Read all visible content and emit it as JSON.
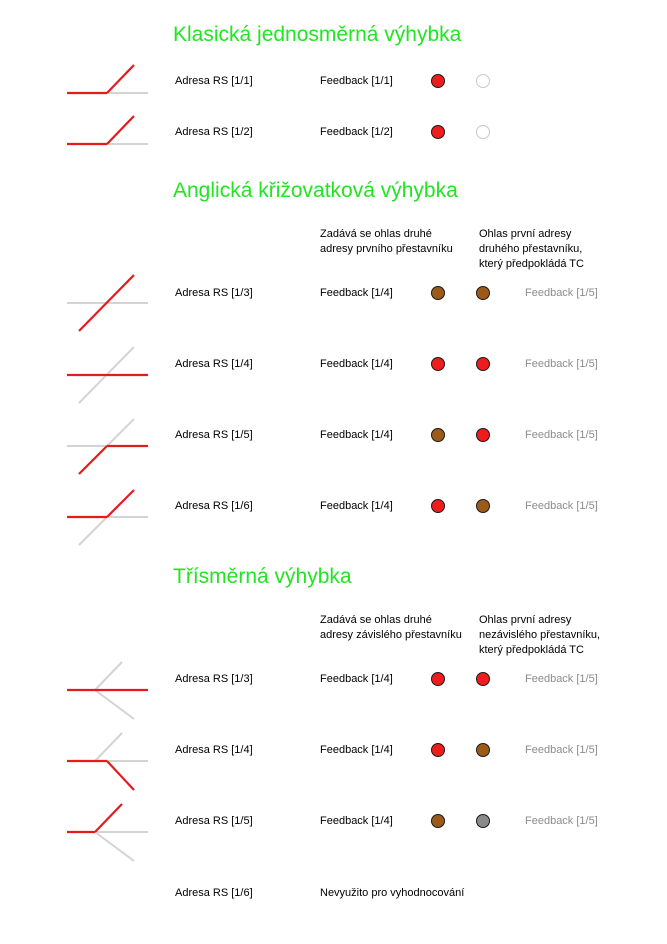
{
  "colors": {
    "heading": "#22e522",
    "track_active": "#e41b1b",
    "track_inactive": "#d4d4d4",
    "indicator": {
      "red": "#ee1c1c",
      "brown": "#9c5a18",
      "grey": "#8a8a8a",
      "off": "#ffffff"
    }
  },
  "sections": [
    {
      "title": "Klasická jednosměrná výhybka",
      "notes": [],
      "rows": [
        {
          "switch_icon": "turnout-left-straight-active-icon",
          "address": "Adresa RS [1/1]",
          "feedback": "Feedback  [1/1]",
          "led1": "red",
          "led2": "off",
          "secondary_feedback": ""
        },
        {
          "switch_icon": "turnout-left-straight-active-icon",
          "address": "Adresa RS [1/2]",
          "feedback": "Feedback  [1/2]",
          "led1": "red",
          "led2": "off",
          "secondary_feedback": ""
        }
      ]
    },
    {
      "title": "Anglická křižovatková výhybka",
      "notes": [
        "Zadává se ohlas druhé\nadresy prvního přestavníku",
        "Ohlas první adresy\ndruhého přestavníku,\nkterý předpokládá TC"
      ],
      "rows": [
        {
          "switch_icon": "crossing-diagonal-active-icon",
          "address": "Adresa RS [1/3]",
          "feedback": "Feedback  [1/4]",
          "led1": "brown",
          "led2": "brown",
          "secondary_feedback": "Feedback  [1/5]"
        },
        {
          "switch_icon": "crossing-straight-active-icon",
          "address": "Adresa RS [1/4]",
          "feedback": "Feedback  [1/4]",
          "led1": "red",
          "led2": "red",
          "secondary_feedback": "Feedback  [1/5]"
        },
        {
          "switch_icon": "crossing-lower-left-to-right-icon",
          "address": "Adresa RS [1/5]",
          "feedback": "Feedback  [1/4]",
          "led1": "brown",
          "led2": "red",
          "secondary_feedback": "Feedback  [1/5]"
        },
        {
          "switch_icon": "crossing-left-to-upper-right-icon",
          "address": "Adresa RS [1/6]",
          "feedback": "Feedback  [1/4]",
          "led1": "red",
          "led2": "brown",
          "secondary_feedback": "Feedback  [1/5]"
        }
      ]
    },
    {
      "title": "Třísměrná výhybka",
      "notes": [
        "Zadává se ohlas druhé\nadresy závislého přestavníku",
        "Ohlas první adresy\nnezávislého přestavníku,\nkterý předpokládá TC"
      ],
      "rows": [
        {
          "switch_icon": "three-way-straight-active-icon",
          "address": "Adresa RS [1/3]",
          "feedback": "Feedback  [1/4]",
          "led1": "red",
          "led2": "red",
          "secondary_feedback": "Feedback  [1/5]"
        },
        {
          "switch_icon": "three-way-down-active-icon",
          "address": "Adresa RS [1/4]",
          "feedback": "Feedback  [1/4]",
          "led1": "red",
          "led2": "brown",
          "secondary_feedback": "Feedback  [1/5]"
        },
        {
          "switch_icon": "three-way-up-active-icon",
          "address": "Adresa RS [1/5]",
          "feedback": "Feedback  [1/4]",
          "led1": "brown",
          "led2": "grey",
          "secondary_feedback": "Feedback  [1/5]"
        }
      ]
    }
  ],
  "footer_row": {
    "address": "Adresa RS [1/6]",
    "text": "Nevyužito pro vyhodnocování"
  }
}
